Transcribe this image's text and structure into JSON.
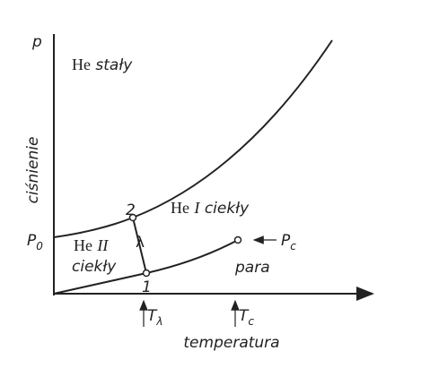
{
  "axes": {
    "y_symbol": "p",
    "y_label": "ciśnienie",
    "x_label": "temperatura"
  },
  "regions": {
    "solid": {
      "prefix": "He",
      "name": "stały"
    },
    "he1": {
      "prefix": "He",
      "roman": "I",
      "name": "ciekły"
    },
    "he2": {
      "prefix": "He",
      "roman": "II",
      "name": "ciekły"
    },
    "vapor": "para"
  },
  "points": {
    "upper": "2",
    "lower": "1",
    "lambda": "λ"
  },
  "pressures": {
    "p0": {
      "main": "P",
      "sub": "0"
    },
    "pc": {
      "main": "P",
      "sub": "c"
    }
  },
  "temperatures": {
    "t_lambda": {
      "main": "T",
      "sub": "λ"
    },
    "t_c": {
      "main": "T",
      "sub": "c"
    }
  }
}
